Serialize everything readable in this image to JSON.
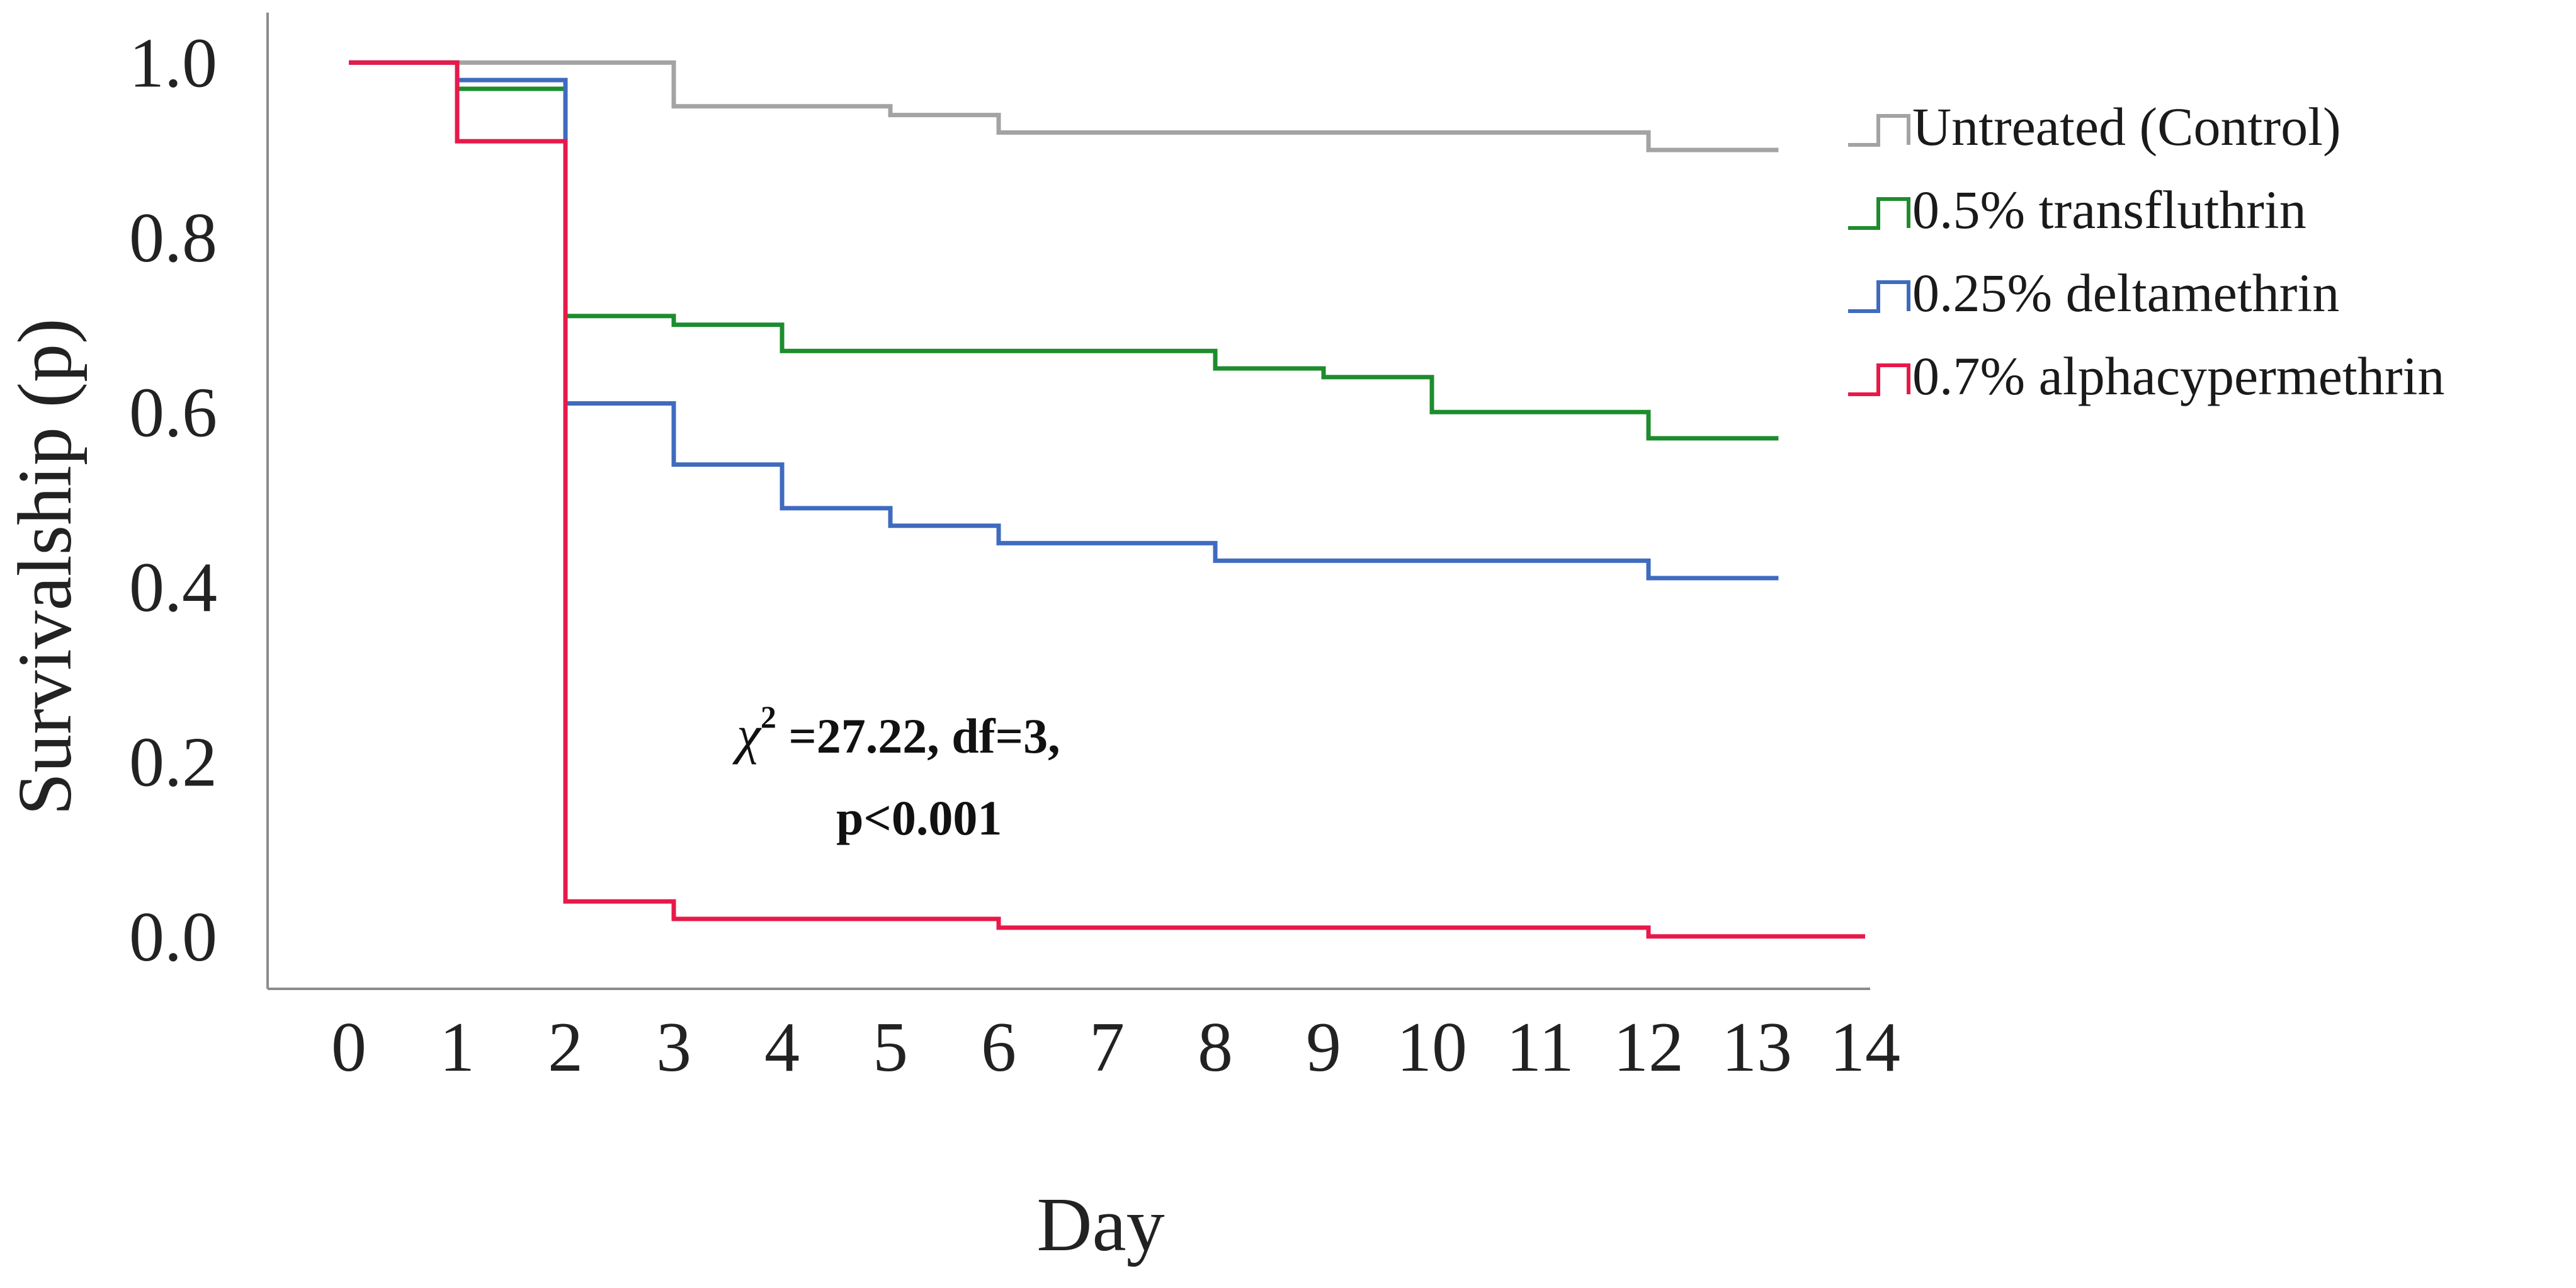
{
  "chart_data": {
    "type": "line",
    "subtype": "step",
    "title": "",
    "xlabel": "Day",
    "ylabel": "Survivalship (p)",
    "xlim": [
      -0.5,
      14.5
    ],
    "ylim": [
      -0.06,
      1.05
    ],
    "x_ticks": [
      0,
      1,
      2,
      3,
      4,
      5,
      6,
      7,
      8,
      9,
      10,
      11,
      12,
      13,
      14
    ],
    "x_tick_labels": [
      "0",
      "1",
      "2",
      "3",
      "4",
      "5",
      "6",
      "7",
      "8",
      "9",
      "10",
      "11",
      "12",
      "13",
      "14"
    ],
    "y_ticks": [
      0.0,
      0.2,
      0.4,
      0.6,
      0.8,
      1.0
    ],
    "y_tick_labels": [
      "0.0",
      "0.2",
      "0.4",
      "0.6",
      "0.8",
      "1.0"
    ],
    "grid": false,
    "legend_position": "top-right outside",
    "series": [
      {
        "name": "Untreated (Control)",
        "color": "#a3a3a3",
        "x": [
          0,
          1,
          3,
          5,
          6,
          12,
          13.2
        ],
        "values": [
          1.0,
          1.0,
          0.95,
          0.94,
          0.92,
          0.9,
          0.9
        ]
      },
      {
        "name": "0.5% transfluthrin",
        "color": "#1e8c2e",
        "x": [
          0,
          1,
          2,
          3,
          4,
          8,
          9,
          10,
          12,
          13.2
        ],
        "values": [
          1.0,
          0.97,
          0.71,
          0.7,
          0.67,
          0.65,
          0.64,
          0.6,
          0.57,
          0.57
        ]
      },
      {
        "name": "0.25% deltamethrin",
        "color": "#3f6bbf",
        "x": [
          0,
          1,
          2,
          3,
          4,
          5,
          6,
          8,
          12,
          13.2
        ],
        "values": [
          1.0,
          0.98,
          0.61,
          0.54,
          0.49,
          0.47,
          0.45,
          0.43,
          0.41,
          0.41
        ]
      },
      {
        "name": "0.7% alphacypermethrin",
        "color": "#e8194a",
        "x": [
          0,
          1,
          2,
          3,
          6,
          12,
          14
        ],
        "values": [
          1.0,
          0.91,
          0.04,
          0.02,
          0.01,
          0.0,
          0.0
        ]
      }
    ],
    "annotation": {
      "symbol": "χ",
      "exponent": "2",
      "line1": " =27.22, df=3,",
      "line2": "p<0.001"
    }
  }
}
